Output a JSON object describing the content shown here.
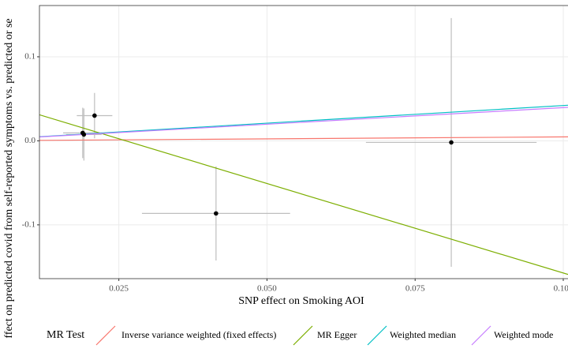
{
  "chart_data": {
    "type": "scatter",
    "x_label": "SNP effect on Smoking AOI",
    "y_label": "ffect on predicted covid from self-reported symptoms vs. predicted or se",
    "x": [
      0.0189,
      0.0191,
      0.0209,
      0.0414,
      0.0811
    ],
    "values": [
      0.0094,
      0.0075,
      0.03,
      -0.0864,
      -0.0019
    ],
    "x_err": [
      0.0033,
      0.003,
      0.003,
      0.0125,
      0.0144
    ],
    "y_err": [
      0.03,
      0.031,
      0.027,
      0.056,
      0.148
    ],
    "color": "#000000",
    "err_color": "#bebebe",
    "xlim": [
      0.0116,
      0.1008
    ],
    "ylim": [
      -0.164,
      0.161
    ],
    "xticks": [
      0.025,
      {
        "value": 0.05,
        "label": "0.050"
      },
      0.075,
      {
        "value": 0.1,
        "label": "0.100"
      }
    ],
    "yticks": [
      -0.1,
      {
        "value": 0,
        "label": "0.0"
      },
      0.1
    ],
    "grid": true,
    "legend_title": "MR Test",
    "legend_position": "bottom",
    "lines": [
      {
        "name": "Inverse variance weighted (fixed effects)",
        "color": "#f8766d",
        "intercept": 0,
        "slope": 0.047
      },
      {
        "name": "MR Egger",
        "color": "#7cae00",
        "intercept": 0.0557,
        "slope": -2.13
      },
      {
        "name": "Weighted median",
        "color": "#00bfc4",
        "intercept": 0,
        "slope": 0.42
      },
      {
        "name": "Weighted mode",
        "color": "#c77cff",
        "intercept": 0,
        "slope": 0.395
      }
    ]
  }
}
